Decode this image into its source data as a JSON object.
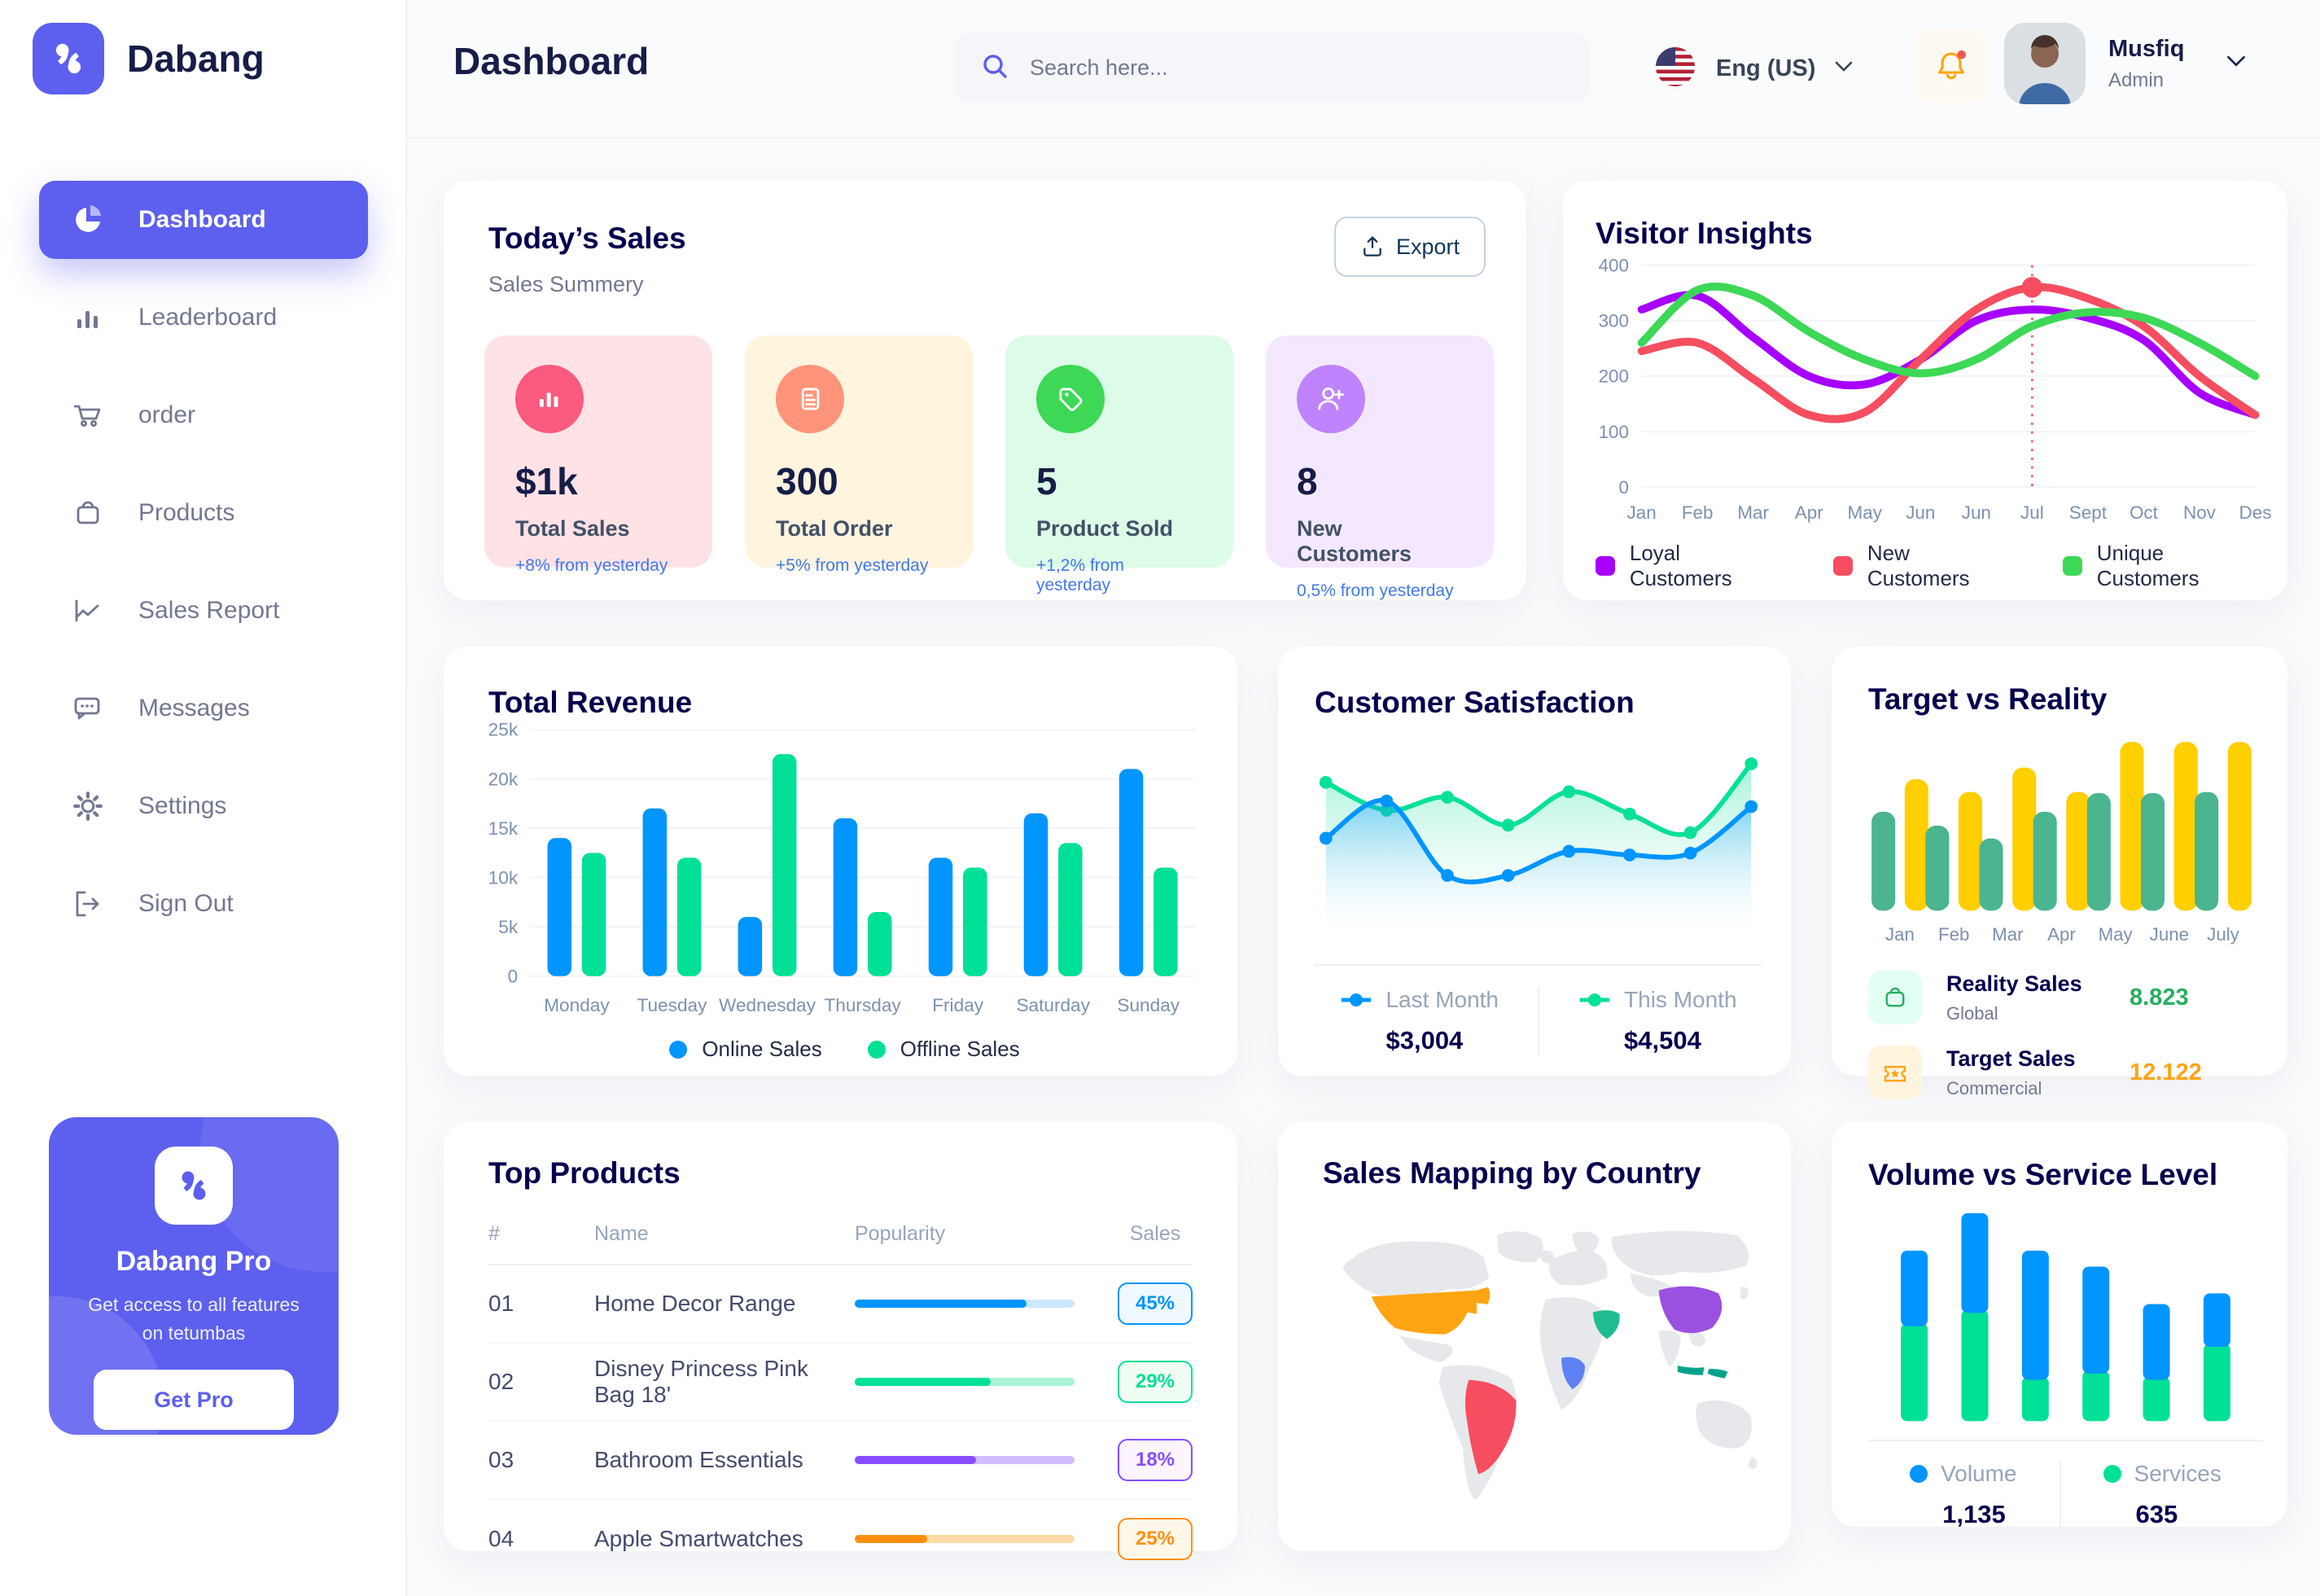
{
  "app": {
    "name": "Dabang",
    "accent_color": "#5D5FEF"
  },
  "header": {
    "title": "Dashboard",
    "search_placeholder": "Search here...",
    "language": "Eng (US)",
    "user": {
      "name": "Musfiq",
      "role": "Admin"
    }
  },
  "sidebar": {
    "items": [
      {
        "label": "Dashboard",
        "icon": "pie-chart-icon",
        "active": true
      },
      {
        "label": "Leaderboard",
        "icon": "bar-chart-icon",
        "active": false
      },
      {
        "label": "order",
        "icon": "cart-icon",
        "active": false
      },
      {
        "label": "Products",
        "icon": "bag-icon",
        "active": false
      },
      {
        "label": "Sales Report",
        "icon": "line-chart-icon",
        "active": false
      },
      {
        "label": "Messages",
        "icon": "chat-icon",
        "active": false
      },
      {
        "label": "Settings",
        "icon": "gear-icon",
        "active": false
      },
      {
        "label": "Sign Out",
        "icon": "sign-out-icon",
        "active": false
      }
    ],
    "pro_card": {
      "title": "Dabang Pro",
      "subtitle": "Get access to all features on tetumbas",
      "button_label": "Get Pro"
    }
  },
  "today_sales": {
    "title": "Today’s Sales",
    "subtitle": "Sales Summery",
    "export_label": "Export",
    "delta_color": "#4079ED",
    "cards": [
      {
        "value": "$1k",
        "label": "Total Sales",
        "delta": "+8% from yesterday",
        "bg": "#FFE2E5",
        "icon_bg": "#FA5A7D",
        "icon": "sales-chart-icon"
      },
      {
        "value": "300",
        "label": "Total Order",
        "delta": "+5% from yesterday",
        "bg": "#FFF4DE",
        "icon_bg": "#FF947A",
        "icon": "order-file-icon"
      },
      {
        "value": "5",
        "label": "Product Sold",
        "delta": "+1,2% from yesterday",
        "bg": "#DCFCE7",
        "icon_bg": "#3CD856",
        "icon": "tag-icon"
      },
      {
        "value": "8",
        "label": "New Customers",
        "delta": "0,5% from yesterday",
        "bg": "#F3E8FF",
        "icon_bg": "#BF83FF",
        "icon": "new-customer-icon"
      }
    ]
  },
  "top_products": {
    "title": "Top Products",
    "columns": [
      "#",
      "Name",
      "Popularity",
      "Sales"
    ],
    "rows": [
      {
        "num": "01",
        "name": "Home Decor Range",
        "popularity": 78,
        "sales": "45%",
        "color": "#0095FF",
        "track": "#CDE7FF",
        "badge_bg": "#F0F9FF"
      },
      {
        "num": "02",
        "name": "Disney Princess Pink Bag 18'",
        "popularity": 62,
        "sales": "29%",
        "color": "#00E096",
        "track": "#A9F2D3",
        "badge_bg": "#F0FDF4"
      },
      {
        "num": "03",
        "name": "Bathroom Essentials",
        "popularity": 55,
        "sales": "18%",
        "color": "#884DFF",
        "track": "#D2BDFF",
        "badge_bg": "#FBF5FF"
      },
      {
        "num": "04",
        "name": "Apple Smartwatches",
        "popularity": 33,
        "sales": "25%",
        "color": "#FF8F0D",
        "track": "#FFD9A6",
        "badge_bg": "#FFF7E8"
      }
    ]
  },
  "sales_map": {
    "title": "Sales Mapping by Country",
    "countries": [
      {
        "name": "United States",
        "color": "#FFA412"
      },
      {
        "name": "Brazil",
        "color": "#F64E60"
      },
      {
        "name": "China",
        "color": "#9B51E0"
      },
      {
        "name": "Saudi Arabia",
        "color": "#1FBC8F"
      },
      {
        "name": "DR Congo",
        "color": "#5E81F4"
      },
      {
        "name": "Indonesia",
        "color": "#00A389"
      }
    ]
  },
  "chart_data": [
    {
      "id": "visitor-insights",
      "type": "line",
      "title": "Visitor Insights",
      "x": [
        "Jan",
        "Feb",
        "Mar",
        "Apr",
        "May",
        "Jun",
        "Jun",
        "Jul",
        "Sept",
        "Oct",
        "Nov",
        "Des"
      ],
      "ylim": [
        0,
        400
      ],
      "yticks": [
        0,
        100,
        200,
        300,
        400
      ],
      "grid": true,
      "legend_position": "bottom",
      "series": [
        {
          "name": "Loyal Customers",
          "color": "#A700FF",
          "values": [
            320,
            345,
            270,
            200,
            185,
            230,
            300,
            320,
            305,
            265,
            170,
            130
          ]
        },
        {
          "name": "New Customers",
          "color": "#F64E60",
          "values": [
            245,
            260,
            195,
            130,
            135,
            230,
            320,
            360,
            340,
            290,
            200,
            130
          ]
        },
        {
          "name": "Unique Customers",
          "color": "#3CD856",
          "values": [
            260,
            355,
            345,
            280,
            230,
            205,
            230,
            290,
            315,
            305,
            260,
            200
          ]
        }
      ],
      "marker": {
        "series": 1,
        "index": 7
      },
      "vline_index": 7
    },
    {
      "id": "total-revenue",
      "type": "bar",
      "title": "Total Revenue",
      "categories": [
        "Monday",
        "Tuesday",
        "Wednesday",
        "Thursday",
        "Friday",
        "Saturday",
        "Sunday"
      ],
      "ylim": [
        0,
        25000
      ],
      "ytick_values": [
        0,
        5000,
        10000,
        15000,
        20000,
        25000
      ],
      "ytick_labels": [
        "0",
        "5k",
        "10k",
        "15k",
        "20k",
        "25k"
      ],
      "grid": true,
      "legend_position": "bottom",
      "series": [
        {
          "name": "Online Sales",
          "color": "#0095FF",
          "values": [
            14000,
            17000,
            6000,
            16000,
            12000,
            16500,
            21000
          ]
        },
        {
          "name": "Offline Sales",
          "color": "#00E096",
          "values": [
            12500,
            12000,
            22500,
            6500,
            11000,
            13500,
            11000
          ]
        }
      ]
    },
    {
      "id": "customer-satisfaction",
      "type": "area",
      "title": "Customer Satisfaction",
      "ylim": [
        0,
        110
      ],
      "grid": false,
      "legend_position": "bottom",
      "series": [
        {
          "name": "Last Month",
          "total": "$3,004",
          "color": "#0095FF",
          "values": [
            55,
            75,
            35,
            35,
            48,
            46,
            47,
            72
          ]
        },
        {
          "name": "This Month",
          "total": "$4,504",
          "color": "#07E098",
          "values": [
            85,
            70,
            77,
            62,
            80,
            68,
            58,
            95
          ]
        }
      ]
    },
    {
      "id": "target-vs-reality",
      "type": "bar",
      "title": "Target vs Reality",
      "categories": [
        "Jan",
        "Feb",
        "Mar",
        "Apr",
        "May",
        "June",
        "July"
      ],
      "ylim": [
        0,
        16
      ],
      "grid": false,
      "series": [
        {
          "name": "Reality Sales",
          "color": "#4AB58E",
          "values": [
            8.5,
            7.3,
            6.2,
            8.5,
            10.1,
            10.1,
            10.2
          ]
        },
        {
          "name": "Target Sales",
          "color": "#FFCF00",
          "values": [
            11.3,
            10.2,
            12.3,
            10.2,
            14.5,
            14.5,
            14.5
          ]
        }
      ],
      "legend": [
        {
          "label": "Reality Sales",
          "sublabel": "Global",
          "value": "8.823",
          "value_color": "#27AE60",
          "icon": "bag-icon",
          "icon_bg": "#E2FFF3"
        },
        {
          "label": "Target Sales",
          "sublabel": "Commercial",
          "value": "12.122",
          "value_color": "#FFA412",
          "icon": "ticket-icon",
          "icon_bg": "#FFF4DE"
        }
      ]
    },
    {
      "id": "volume-vs-service",
      "type": "stacked-bar",
      "title": "Volume vs Service Level",
      "ylim": [
        0,
        250
      ],
      "grid": false,
      "legend_position": "bottom",
      "series": [
        {
          "name": "Volume",
          "color": "#0095FF",
          "total": "1,135",
          "values": [
            85,
            112,
            145,
            120,
            85,
            60
          ]
        },
        {
          "name": "Services",
          "color": "#00E096",
          "total": "635",
          "values": [
            110,
            125,
            50,
            57,
            50,
            87
          ]
        }
      ]
    }
  ]
}
